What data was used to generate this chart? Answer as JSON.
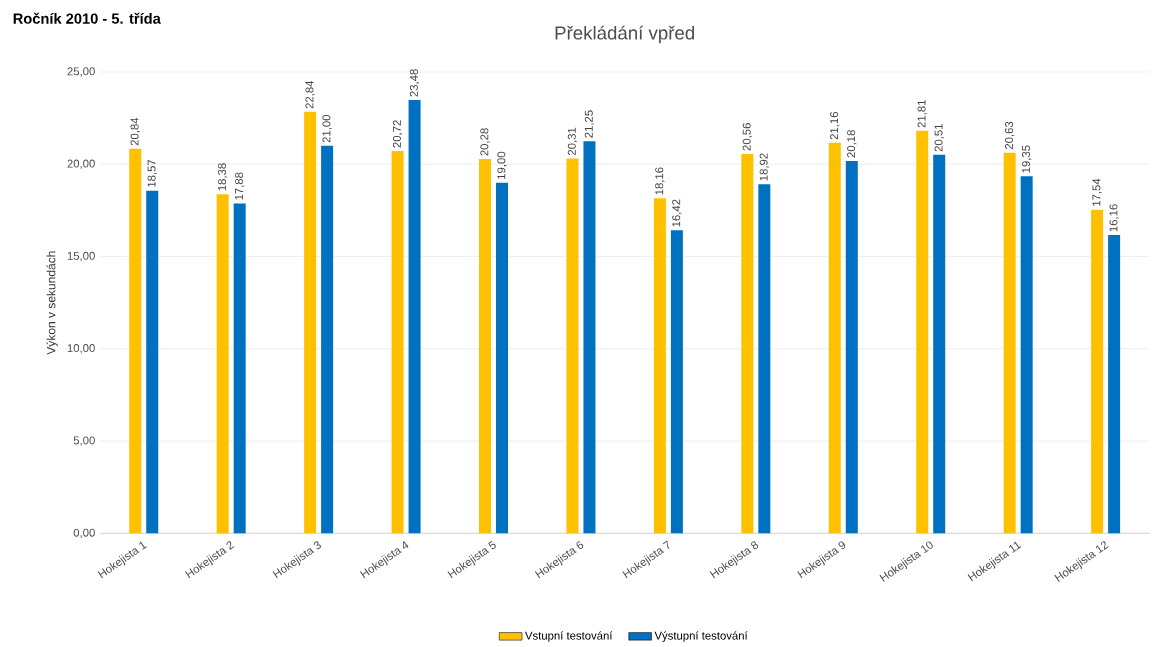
{
  "chart_data": {
    "type": "bar",
    "title": "Překládání vpřed",
    "ylabel": "Výkon v sekundách",
    "annotations": [
      "Ročník 2010 - 5. třída"
    ],
    "categories": [
      "Hokejista 1",
      "Hokejista 2",
      "Hokejista 3",
      "Hokejista 4",
      "Hokejista 5",
      "Hokejista 6",
      "Hokejista 7",
      "Hokejista 8",
      "Hokejista 9",
      "Hokejista 10",
      "Hokejista 11",
      "Hokejista 12"
    ],
    "series": [
      {
        "name": "Vstupní testování",
        "color": "#ffc000",
        "values": [
          20.84,
          18.38,
          22.84,
          20.72,
          20.28,
          20.31,
          18.16,
          20.56,
          21.16,
          21.81,
          20.63,
          17.54
        ],
        "value_labels": [
          "20,84",
          "18,38",
          "22,84",
          "20,72",
          "20,28",
          "20,31",
          "18,16",
          "20,56",
          "21,16",
          "21,81",
          "20,63",
          "17,54"
        ]
      },
      {
        "name": "Výstupní testování",
        "color": "#0070c0",
        "values": [
          18.57,
          17.88,
          21.0,
          23.48,
          19.0,
          21.25,
          16.42,
          18.92,
          20.18,
          20.51,
          19.35,
          16.16
        ],
        "value_labels": [
          "18,57",
          "17,88",
          "21,00",
          "23,48",
          "19,00",
          "21,25",
          "16,42",
          "18,92",
          "20,18",
          "20,51",
          "19,35",
          "16,16"
        ]
      }
    ],
    "ylim": [
      0,
      25
    ],
    "yticks": [
      {
        "value": 0,
        "label": "0,00"
      },
      {
        "value": 5,
        "label": "5,00"
      },
      {
        "value": 10,
        "label": "10,00"
      },
      {
        "value": 15,
        "label": "15,00"
      },
      {
        "value": 20,
        "label": "20,00"
      },
      {
        "value": 25,
        "label": "25,00"
      }
    ],
    "grid": "y",
    "legend": "bottom"
  }
}
